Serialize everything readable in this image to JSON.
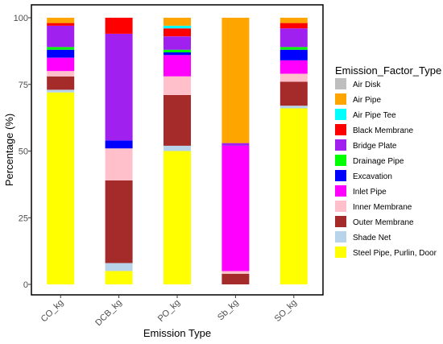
{
  "chart_data": {
    "type": "bar",
    "stacked": true,
    "xlabel": "Emission Type",
    "ylabel": "Percentage (%)",
    "ylim": [
      0,
      100
    ],
    "yticks": [
      0,
      25,
      50,
      75,
      100
    ],
    "categories": [
      "CO_kg",
      "DCB_kg",
      "PO_kg",
      "Sb_kg",
      "SO_kg"
    ],
    "legend_title": "Emission_Factor_Type",
    "legend_position": "right",
    "series": [
      {
        "name": "Steel Pipe, Purlin, Door",
        "color": "#FFFF00",
        "values": [
          72,
          5,
          50,
          0,
          66
        ]
      },
      {
        "name": "Shade Net",
        "color": "#B7D4EA",
        "values": [
          1,
          3,
          2,
          0,
          1
        ]
      },
      {
        "name": "Outer Membrane",
        "color": "#A52A2A",
        "values": [
          5,
          31,
          19,
          4,
          9
        ]
      },
      {
        "name": "Inner Membrane",
        "color": "#FFC0CB",
        "values": [
          2,
          12,
          7,
          1,
          3
        ]
      },
      {
        "name": "Inlet Pipe",
        "color": "#FF00FF",
        "values": [
          5,
          0,
          8,
          47,
          5
        ]
      },
      {
        "name": "Excavation",
        "color": "#0000FF",
        "values": [
          3,
          3,
          1,
          0,
          4
        ]
      },
      {
        "name": "Drainage Pipe",
        "color": "#00FF00",
        "values": [
          1,
          0,
          1,
          0,
          1
        ]
      },
      {
        "name": "Bridge Plate",
        "color": "#A020F0",
        "values": [
          8,
          40,
          5,
          1,
          7
        ]
      },
      {
        "name": "Black Membrane",
        "color": "#FF0000",
        "values": [
          1,
          6,
          3,
          0,
          2
        ]
      },
      {
        "name": "Air Pipe Tee",
        "color": "#00FFFF",
        "values": [
          0,
          0,
          1,
          0,
          0
        ]
      },
      {
        "name": "Air Pipe",
        "color": "#FFA500",
        "values": [
          2,
          0,
          3,
          47,
          2
        ]
      },
      {
        "name": "Air Disk",
        "color": "#BEBEBE",
        "values": [
          0,
          0,
          0,
          0,
          0
        ]
      }
    ],
    "legend_order": [
      "Air Disk",
      "Air Pipe",
      "Air Pipe Tee",
      "Black Membrane",
      "Bridge Plate",
      "Drainage Pipe",
      "Excavation",
      "Inlet Pipe",
      "Inner Membrane",
      "Outer Membrane",
      "Shade Net",
      "Steel Pipe, Purlin, Door"
    ],
    "grid": false
  }
}
